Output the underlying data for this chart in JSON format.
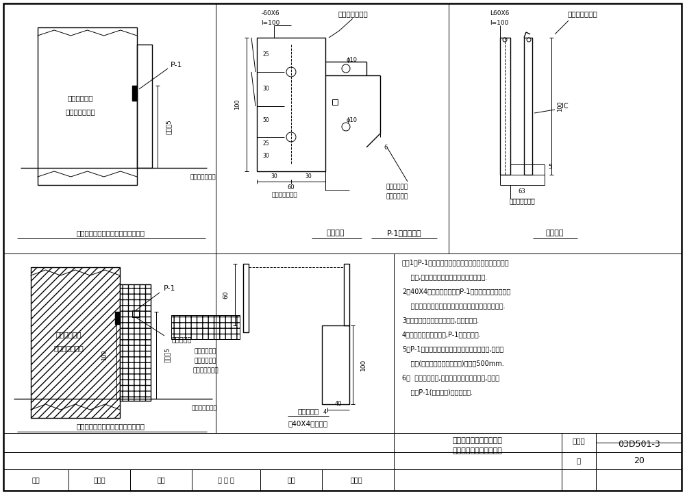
{
  "line_color": "#000000",
  "notes_lines": [
    "注：1．P-1预埋连接板和引出连接板为向土建提出的专设",
    "    构件,具体位置和数量由具体工程设计确定.",
    "2．40X4扁钉引出连接板和P-1预埋板供测试、连接人",
    "    工接地体和接闪器、作等电位连接、接地连接等之用.",
    "3．当引出连接板穿过砖墙时,从砖缝引出.",
    "4．当为钉筋混凝土柱时,P-1设于柱角处.",
    "5．P-1预埋板距地面的高度，由具体工程确定,距室外",
    "    地面(用于连接人工接地体时)不低于500mm.",
    "6．  对高层建筑物,当不允许与柱纵筋焊接时,用卡夹",
    "    器将P-1(扁钙方案)与纵筋连接."
  ],
  "title_line1": "在多、高层建筑的鑉筋混",
  "title_line2": "凝土中预埋连接板的做法",
  "drawing_number": "03D501-3",
  "page_num": "20",
  "label_audit": "寡核",
  "name_audit": "杯克俣",
  "label_check": "校对",
  "name_check": "董 反 范",
  "label_design": "设计",
  "name_design": "林维勇",
  "label_page": "页",
  "label_drawing": "图集号"
}
